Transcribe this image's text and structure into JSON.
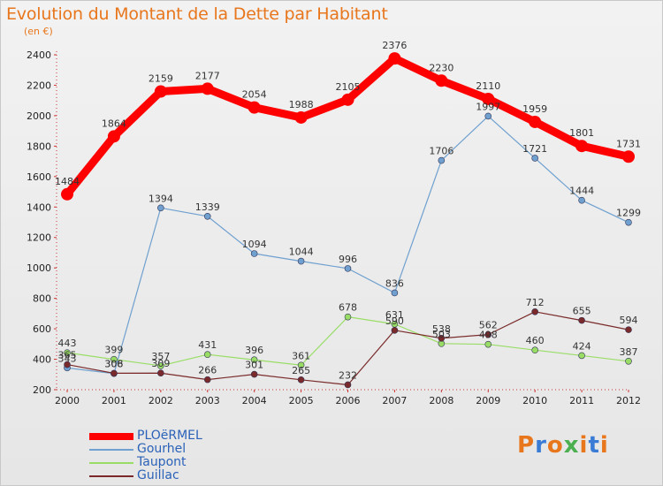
{
  "title": "Evolution du Montant de la Dette par Habitant",
  "subtitle": "(en €)",
  "logo_text": "Proxiti",
  "logo_colors": [
    "#e8761c",
    "#3a7bd5",
    "#e8761c",
    "#4caf50",
    "#e8761c",
    "#3a7bd5",
    "#e8761c"
  ],
  "chart_data": {
    "type": "line",
    "title": "Evolution du Montant de la Dette par Habitant",
    "subtitle": "(en €)",
    "xlabel": "",
    "ylabel": "",
    "x": [
      "2000",
      "2001",
      "2002",
      "2003",
      "2004",
      "2005",
      "2006",
      "2007",
      "2008",
      "2009",
      "2010",
      "2011",
      "2012"
    ],
    "ylim": [
      200,
      2400
    ],
    "yticks": [
      200,
      400,
      600,
      800,
      1000,
      1200,
      1400,
      1600,
      1800,
      2000,
      2200,
      2400
    ],
    "grid": false,
    "legend_position": "bottom-left",
    "series": [
      {
        "name": "PLOëRMEL",
        "color": "#ff0000",
        "width": 9,
        "marker": 7,
        "values": [
          1484,
          1864,
          2159,
          2177,
          2054,
          1988,
          2105,
          2376,
          2230,
          2110,
          1959,
          1801,
          1731
        ]
      },
      {
        "name": "Gourhel",
        "color": "#6fa0cf",
        "width": 1.2,
        "marker": 3.5,
        "values": [
          343,
          306,
          1394,
          1339,
          1094,
          1044,
          996,
          836,
          1706,
          1997,
          1721,
          1444,
          1299
        ]
      },
      {
        "name": "Taupont",
        "color": "#99dd66",
        "width": 1.2,
        "marker": 3.5,
        "values": [
          443,
          399,
          357,
          431,
          396,
          361,
          678,
          631,
          503,
          498,
          460,
          424,
          387
        ]
      },
      {
        "name": "Guillac",
        "color": "#7a2a2a",
        "width": 1.2,
        "marker": 3.5,
        "values": [
          365,
          308,
          309,
          266,
          301,
          265,
          232,
          590,
          538,
          562,
          712,
          655,
          594
        ]
      }
    ]
  }
}
